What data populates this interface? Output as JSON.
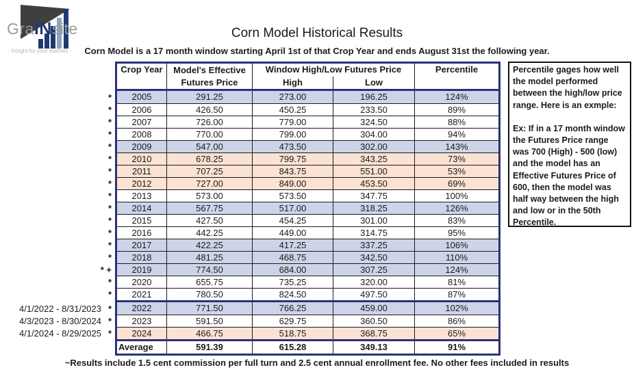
{
  "logo": {
    "text_pre": "Gra",
    "text_mid": "IN",
    "text_post": "site",
    "tagline": "- Insight for your bushels -"
  },
  "header": {
    "title": "Corn Model Historical Results",
    "subtitle": "Corn Model is a 17 month window starting April 1st of that Crop Year and ends August 31st the following year."
  },
  "table": {
    "col_headers": {
      "crop_year": "Crop Year",
      "model_line1": "Model's Effective",
      "model_line2": "Futures Price",
      "window": "Window High/Low Futures Price",
      "high": "High",
      "low": "Low",
      "percentile": "Percentile"
    },
    "rows": [
      {
        "year": "2005",
        "eff": "291.25",
        "high": "273.00",
        "low": "196.25",
        "pct": "124%",
        "bg": "blue",
        "marker": "*",
        "date_label": "",
        "section": 0
      },
      {
        "year": "2006",
        "eff": "426.50",
        "high": "450.25",
        "low": "233.50",
        "pct": "89%",
        "bg": "white",
        "marker": "*",
        "date_label": "",
        "section": 0
      },
      {
        "year": "2007",
        "eff": "726.00",
        "high": "779.00",
        "low": "324.50",
        "pct": "88%",
        "bg": "white",
        "marker": "*",
        "date_label": "",
        "section": 0
      },
      {
        "year": "2008",
        "eff": "770.00",
        "high": "799.00",
        "low": "304.00",
        "pct": "94%",
        "bg": "white",
        "marker": "*",
        "date_label": "",
        "section": 0
      },
      {
        "year": "2009",
        "eff": "547.00",
        "high": "473.50",
        "low": "302.00",
        "pct": "143%",
        "bg": "blue",
        "marker": "*",
        "date_label": "",
        "section": 0
      },
      {
        "year": "2010",
        "eff": "678.25",
        "high": "799.75",
        "low": "343.25",
        "pct": "73%",
        "bg": "peach",
        "marker": "*",
        "date_label": "",
        "section": 0
      },
      {
        "year": "2011",
        "eff": "707.25",
        "high": "843.75",
        "low": "551.00",
        "pct": "53%",
        "bg": "peach",
        "marker": "*",
        "date_label": "",
        "section": 0
      },
      {
        "year": "2012",
        "eff": "727.00",
        "high": "849.00",
        "low": "453.50",
        "pct": "69%",
        "bg": "peach",
        "marker": "*",
        "date_label": "",
        "section": 0
      },
      {
        "year": "2013",
        "eff": "573.00",
        "high": "573.50",
        "low": "347.75",
        "pct": "100%",
        "bg": "white",
        "marker": "*",
        "date_label": "",
        "section": 0
      },
      {
        "year": "2014",
        "eff": "567.75",
        "high": "517.00",
        "low": "318.25",
        "pct": "126%",
        "bg": "blue",
        "marker": "*",
        "date_label": "",
        "section": 0
      },
      {
        "year": "2015",
        "eff": "427.50",
        "high": "454.25",
        "low": "301.00",
        "pct": "83%",
        "bg": "white",
        "marker": "*",
        "date_label": "",
        "section": 0
      },
      {
        "year": "2016",
        "eff": "442.25",
        "high": "449.00",
        "low": "314.75",
        "pct": "95%",
        "bg": "white",
        "marker": "*",
        "date_label": "",
        "section": 0
      },
      {
        "year": "2017",
        "eff": "422.25",
        "high": "417.25",
        "low": "337.25",
        "pct": "106%",
        "bg": "blue",
        "marker": "*",
        "date_label": "",
        "section": 0
      },
      {
        "year": "2018",
        "eff": "481.25",
        "high": "468.75",
        "low": "342.50",
        "pct": "110%",
        "bg": "blue",
        "marker": "*",
        "date_label": "",
        "section": 0
      },
      {
        "year": "2019",
        "eff": "774.50",
        "high": "684.00",
        "low": "307.25",
        "pct": "124%",
        "bg": "blue",
        "marker": "* +",
        "date_label": "",
        "section": 0
      },
      {
        "year": "2020",
        "eff": "655.75",
        "high": "735.25",
        "low": "320.00",
        "pct": "81%",
        "bg": "white",
        "marker": "*",
        "date_label": "",
        "section": 0
      },
      {
        "year": "2021",
        "eff": "780.50",
        "high": "824.50",
        "low": "497.50",
        "pct": "87%",
        "bg": "white",
        "marker": "*",
        "date_label": "",
        "section": 0
      },
      {
        "year": "2022",
        "eff": "771.50",
        "high": "766.25",
        "low": "459.00",
        "pct": "102%",
        "bg": "blue",
        "marker": "*",
        "date_label": "4/1/2022 - 8/31/2023",
        "section": 1
      },
      {
        "year": "2023",
        "eff": "591.50",
        "high": "629.75",
        "low": "360.50",
        "pct": "86%",
        "bg": "white",
        "marker": "*",
        "date_label": "4/3/2023 - 8/30/2024",
        "section": 1
      },
      {
        "year": "2024",
        "eff": "466.75",
        "high": "518.75",
        "low": "368.75",
        "pct": "65%",
        "bg": "peach",
        "marker": "*",
        "date_label": "4/1/2024 - 8/29/2025",
        "section": 1
      }
    ],
    "average": {
      "label": "Average",
      "eff": "591.39",
      "high": "615.28",
      "low": "349.13",
      "pct": "91%"
    }
  },
  "side_note": {
    "para1": "Percentile gages how well the model performed between the high/low price range. Here is an exmple:",
    "para2": "Ex: If in a 17 month window the Futures Price range was 700 (High) - 500 (low) and the model has an Effective Futures Price of 600, then the model was half way between the high and low or in the 50th Percentile."
  },
  "footnote": "~Results include 1.5 cent commission per full turn and 2.5 cent annual enrollment fee. No other fees included in results",
  "colors": {
    "navy": "#2b3176",
    "row_blue": "#cdd4e9",
    "row_peach": "#fbe2d2"
  }
}
